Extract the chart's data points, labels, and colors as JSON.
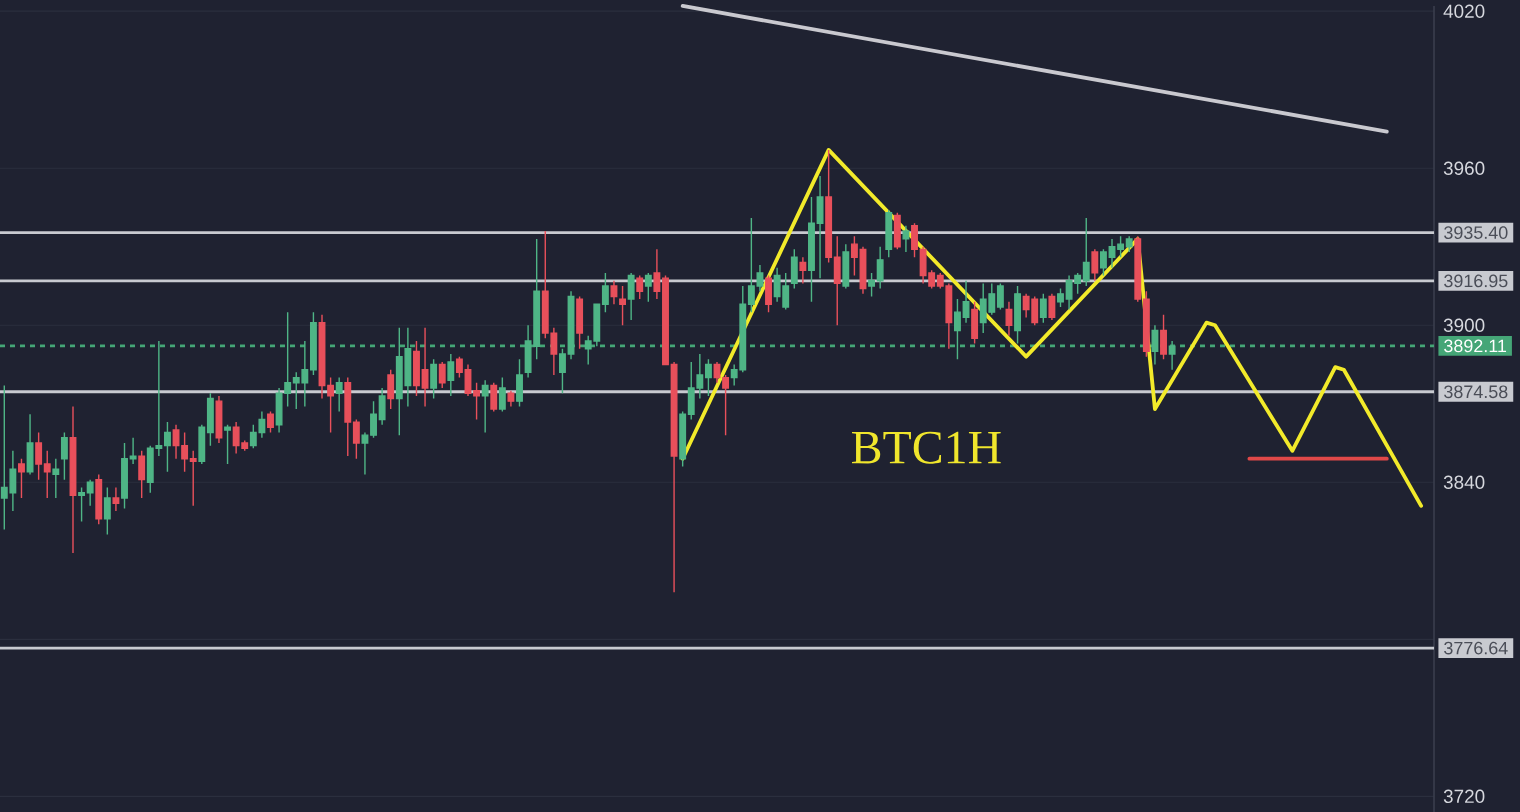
{
  "chart_data": {
    "type": "candlestick",
    "categories": [
      null,
      null,
      null,
      null,
      null,
      null,
      null,
      null,
      null,
      null,
      null,
      null,
      null,
      null,
      null,
      null,
      null,
      null,
      null,
      null,
      null,
      null,
      null,
      null,
      null,
      null,
      null,
      null,
      null,
      null,
      null,
      null,
      null,
      null,
      null,
      null,
      null,
      null,
      null,
      null,
      null,
      null,
      null,
      null,
      null,
      null,
      null,
      null,
      null,
      null,
      null,
      null,
      null,
      null,
      null,
      null,
      null,
      null,
      null,
      null,
      null,
      null,
      null,
      null,
      null,
      null,
      null,
      null,
      null,
      null,
      null,
      null,
      null,
      null,
      null,
      null,
      null,
      null,
      null,
      null,
      null,
      null,
      null,
      null,
      null,
      null,
      null,
      null,
      null,
      null,
      null,
      null,
      null,
      null,
      null,
      null,
      null,
      null,
      null,
      null,
      null,
      null,
      null,
      null,
      null,
      null,
      null,
      null,
      null,
      null,
      null,
      null,
      null,
      null,
      null,
      null,
      null,
      null,
      null,
      null,
      null,
      null,
      null,
      null,
      null,
      null,
      null,
      null,
      null,
      null,
      null,
      null,
      null,
      null,
      null,
      null,
      null,
      null,
      null,
      null,
      null,
      null,
      null,
      null,
      null,
      null,
      null,
      null,
      null,
      null,
      null,
      null,
      null,
      null,
      null,
      null,
      null,
      null,
      null,
      null,
      null,
      null,
      null,
      null,
      null,
      null,
      null
    ],
    "ohlc": [
      [
        3834,
        3877,
        3822,
        3838
      ],
      [
        3836,
        3852,
        3829,
        3845
      ],
      [
        3847,
        3849,
        3834,
        3844
      ],
      [
        3844,
        3866,
        3843,
        3855
      ],
      [
        3855,
        3859,
        3841,
        3847
      ],
      [
        3847,
        3852,
        3834,
        3844
      ],
      [
        3843,
        3849,
        3834,
        3845
      ],
      [
        3849,
        3859,
        3841,
        3857
      ],
      [
        3857,
        3869,
        3813,
        3835
      ],
      [
        3835,
        3838,
        3825,
        3836
      ],
      [
        3836,
        3841,
        3831,
        3840
      ],
      [
        3841,
        3843,
        3824,
        3826
      ],
      [
        3826,
        3838,
        3820,
        3834
      ],
      [
        3834,
        3838,
        3829,
        3832
      ],
      [
        3834,
        3855,
        3830,
        3849
      ],
      [
        3849,
        3857,
        3847,
        3850
      ],
      [
        3850,
        3852,
        3834,
        3841
      ],
      [
        3840,
        3854,
        3836,
        3853
      ],
      [
        3853,
        3894,
        3850,
        3854
      ],
      [
        3854,
        3863,
        3844,
        3859
      ],
      [
        3860,
        3862,
        3849,
        3854
      ],
      [
        3854,
        3859,
        3844,
        3849
      ],
      [
        3849,
        3852,
        3831,
        3848
      ],
      [
        3848,
        3862,
        3847,
        3861
      ],
      [
        3859,
        3874,
        3854,
        3872
      ],
      [
        3871,
        3873,
        3855,
        3857
      ],
      [
        3860,
        3862,
        3847,
        3861
      ],
      [
        3861,
        3863,
        3851,
        3854
      ],
      [
        3855,
        3856,
        3852,
        3853
      ],
      [
        3854,
        3862,
        3853,
        3859
      ],
      [
        3859,
        3867,
        3857,
        3864
      ],
      [
        3866,
        3867,
        3859,
        3861
      ],
      [
        3862,
        3876,
        3859,
        3874
      ],
      [
        3874,
        3905,
        3869,
        3878
      ],
      [
        3878,
        3882,
        3868,
        3880
      ],
      [
        3878,
        3894,
        3869,
        3883
      ],
      [
        3883,
        3905,
        3881,
        3901
      ],
      [
        3901,
        3904,
        3872,
        3877
      ],
      [
        3877,
        3880,
        3859,
        3873
      ],
      [
        3874,
        3880,
        3867,
        3878
      ],
      [
        3878,
        3880,
        3850,
        3863
      ],
      [
        3863,
        3864,
        3849,
        3855
      ],
      [
        3855,
        3859,
        3843,
        3858
      ],
      [
        3858,
        3871,
        3857,
        3866
      ],
      [
        3864,
        3876,
        3862,
        3873
      ],
      [
        3881,
        3883,
        3868,
        3872
      ],
      [
        3872,
        3899,
        3858,
        3888
      ],
      [
        3877,
        3899,
        3869,
        3891
      ],
      [
        3890,
        3894,
        3873,
        3877
      ],
      [
        3883,
        3899,
        3869,
        3876
      ],
      [
        3876,
        3887,
        3872,
        3885
      ],
      [
        3885,
        3886,
        3876,
        3878
      ],
      [
        3879,
        3889,
        3873,
        3886
      ],
      [
        3887,
        3888,
        3880,
        3882
      ],
      [
        3883,
        3885,
        3873,
        3874
      ],
      [
        3875,
        3878,
        3864,
        3873
      ],
      [
        3873,
        3879,
        3859,
        3877
      ],
      [
        3877,
        3878,
        3867,
        3868
      ],
      [
        3868,
        3880,
        3867,
        3876
      ],
      [
        3874,
        3875,
        3869,
        3871
      ],
      [
        3871,
        3887,
        3869,
        3881
      ],
      [
        3882,
        3900,
        3880,
        3894
      ],
      [
        3892,
        3933,
        3887,
        3913
      ],
      [
        3913,
        3936,
        3895,
        3897
      ],
      [
        3897,
        3899,
        3881,
        3889
      ],
      [
        3882,
        3891,
        3874,
        3889
      ],
      [
        3889,
        3913,
        3887,
        3911
      ],
      [
        3910,
        3911,
        3891,
        3897
      ],
      [
        3891,
        3896,
        3885,
        3894
      ],
      [
        3894,
        3908,
        3892,
        3908
      ],
      [
        3908,
        3920,
        3905,
        3915
      ],
      [
        3915,
        3917,
        3908,
        3911
      ],
      [
        3910,
        3915,
        3900,
        3908
      ],
      [
        3910,
        3920,
        3902,
        3919
      ],
      [
        3918,
        3919,
        3910,
        3913
      ],
      [
        3915,
        3920,
        3909,
        3919
      ],
      [
        3920,
        3929,
        3910,
        3913
      ],
      [
        3918,
        3919,
        3885,
        3885
      ],
      [
        3885,
        3886,
        3798,
        3850
      ],
      [
        3849,
        3867,
        3846,
        3866
      ],
      [
        3866,
        3886,
        3864,
        3876
      ],
      [
        3876,
        3889,
        3872,
        3881
      ],
      [
        3880,
        3887,
        3873,
        3885
      ],
      [
        3885,
        3886,
        3878,
        3880
      ],
      [
        3880,
        3881,
        3858,
        3876
      ],
      [
        3880,
        3885,
        3877,
        3883
      ],
      [
        3883,
        3915,
        3882,
        3908
      ],
      [
        3908,
        3941,
        3905,
        3915
      ],
      [
        3915,
        3923,
        3913,
        3920
      ],
      [
        3918,
        3919,
        3905,
        3908
      ],
      [
        3911,
        3922,
        3909,
        3919
      ],
      [
        3907,
        3920,
        3906,
        3915
      ],
      [
        3916,
        3929,
        3914,
        3926
      ],
      [
        3924,
        3926,
        3916,
        3921
      ],
      [
        3921,
        3949,
        3909,
        3939
      ],
      [
        3939,
        3957,
        3918,
        3949
      ],
      [
        3949,
        3967,
        3924,
        3926
      ],
      [
        3926,
        3934,
        3900,
        3916
      ],
      [
        3915,
        3931,
        3914,
        3928
      ],
      [
        3931,
        3934,
        3919,
        3926
      ],
      [
        3929,
        3930,
        3912,
        3914
      ],
      [
        3915,
        3920,
        3911,
        3917
      ],
      [
        3917,
        3930,
        3914,
        3925
      ],
      [
        3929,
        3944,
        3926,
        3943
      ],
      [
        3942,
        3943,
        3929,
        3930
      ],
      [
        3933,
        3938,
        3928,
        3936
      ],
      [
        3938,
        3939,
        3926,
        3929
      ],
      [
        3929,
        3930,
        3916,
        3919
      ],
      [
        3920,
        3921,
        3914,
        3915
      ],
      [
        3919,
        3920,
        3914,
        3915
      ],
      [
        3915,
        3916,
        3891,
        3901
      ],
      [
        3898,
        3910,
        3887,
        3905
      ],
      [
        3903,
        3917,
        3901,
        3909
      ],
      [
        3906,
        3909,
        3893,
        3895
      ],
      [
        3901,
        3916,
        3897,
        3910
      ],
      [
        3905,
        3916,
        3904,
        3912
      ],
      [
        3907,
        3916,
        3906,
        3915
      ],
      [
        3906,
        3909,
        3896,
        3900
      ],
      [
        3898,
        3915,
        3893,
        3912
      ],
      [
        3911,
        3912,
        3903,
        3906
      ],
      [
        3910,
        3911,
        3900,
        3901
      ],
      [
        3903,
        3912,
        3901,
        3910
      ],
      [
        3911,
        3912,
        3902,
        3903
      ],
      [
        3909,
        3914,
        3907,
        3912
      ],
      [
        3910,
        3919,
        3906,
        3917
      ],
      [
        3916,
        3920,
        3912,
        3919
      ],
      [
        3917,
        3941,
        3915,
        3924
      ],
      [
        3928,
        3929,
        3917,
        3920
      ],
      [
        3922,
        3929,
        3919,
        3928
      ],
      [
        3926,
        3933,
        3922,
        3930
      ],
      [
        3929,
        3934,
        3926,
        3931
      ],
      [
        3930,
        3934,
        3928,
        3933
      ],
      [
        3933,
        3934,
        3909,
        3910
      ],
      [
        3910,
        3913,
        3888,
        3890
      ],
      [
        3890,
        3900,
        3885,
        3898
      ],
      [
        3898,
        3904,
        3887,
        3889
      ],
      [
        3889,
        3894,
        3883,
        3892
      ],
      null,
      null,
      null,
      null,
      null,
      null,
      null,
      null,
      null,
      null,
      null,
      null,
      null,
      null,
      null,
      null,
      null,
      null,
      null,
      null,
      null,
      null,
      null,
      null,
      null,
      null,
      null,
      null,
      null,
      null
    ],
    "ylim": [
      3714,
      4022
    ],
    "yticks": [
      4020,
      3960,
      3900,
      3840,
      {
        "value": 3780,
        "label": null
      },
      3720
    ],
    "grid": "y",
    "tick_labels": "y",
    "ref_lines": [
      {
        "axis": "y",
        "value": 3935.4,
        "label": "3935.40",
        "color": "#c8cad0"
      },
      {
        "axis": "y",
        "value": 3916.95,
        "label": "3916.95",
        "color": "#c8cad0"
      },
      {
        "axis": "y",
        "value": 3892.11,
        "label": "3892.11",
        "color": "#45a677",
        "line_style": "dashed"
      },
      {
        "axis": "y",
        "value": 3874.58,
        "label": "3874.58",
        "color": "#c8cad0"
      },
      {
        "axis": "y",
        "value": 3776.64,
        "label": "3776.64",
        "color": "#c8cad0"
      }
    ],
    "series": [
      {
        "type": "line",
        "color": "#c9c9cf",
        "values": [
          null,
          null,
          null,
          null,
          null,
          null,
          null,
          null,
          null,
          null,
          null,
          null,
          null,
          null,
          null,
          null,
          null,
          null,
          null,
          null,
          null,
          null,
          null,
          null,
          null,
          null,
          null,
          null,
          null,
          null,
          null,
          null,
          null,
          null,
          null,
          null,
          null,
          null,
          null,
          null,
          null,
          null,
          null,
          null,
          null,
          null,
          null,
          null,
          null,
          null,
          null,
          null,
          null,
          null,
          null,
          null,
          null,
          null,
          null,
          null,
          null,
          null,
          null,
          null,
          null,
          null,
          null,
          null,
          null,
          null,
          null,
          null,
          null,
          null,
          null,
          null,
          null,
          null,
          null,
          4022,
          null,
          null,
          null,
          null,
          null,
          null,
          null,
          null,
          null,
          null,
          null,
          null,
          null,
          null,
          null,
          null,
          null,
          null,
          null,
          null,
          null,
          null,
          null,
          null,
          null,
          null,
          null,
          null,
          null,
          null,
          null,
          null,
          null,
          null,
          null,
          null,
          null,
          null,
          null,
          null,
          null,
          null,
          null,
          null,
          null,
          null,
          null,
          null,
          null,
          null,
          null,
          null,
          null,
          null,
          null,
          null,
          null,
          null,
          null,
          null,
          null,
          null,
          null,
          null,
          null,
          null,
          null,
          null,
          null,
          null,
          null,
          null,
          null,
          null,
          null,
          null,
          null,
          null,
          null,
          null,
          null,
          3974,
          null,
          null,
          null,
          null,
          null
        ]
      },
      {
        "type": "line",
        "color": "#e04848",
        "values": [
          null,
          null,
          null,
          null,
          null,
          null,
          null,
          null,
          null,
          null,
          null,
          null,
          null,
          null,
          null,
          null,
          null,
          null,
          null,
          null,
          null,
          null,
          null,
          null,
          null,
          null,
          null,
          null,
          null,
          null,
          null,
          null,
          null,
          null,
          null,
          null,
          null,
          null,
          null,
          null,
          null,
          null,
          null,
          null,
          null,
          null,
          null,
          null,
          null,
          null,
          null,
          null,
          null,
          null,
          null,
          null,
          null,
          null,
          null,
          null,
          null,
          null,
          null,
          null,
          null,
          null,
          null,
          null,
          null,
          null,
          null,
          null,
          null,
          null,
          null,
          null,
          null,
          null,
          null,
          null,
          null,
          null,
          null,
          null,
          null,
          null,
          null,
          null,
          null,
          null,
          null,
          null,
          null,
          null,
          null,
          null,
          null,
          null,
          null,
          null,
          null,
          null,
          null,
          null,
          null,
          null,
          null,
          null,
          null,
          null,
          null,
          null,
          null,
          null,
          null,
          null,
          null,
          null,
          null,
          null,
          null,
          null,
          null,
          null,
          null,
          null,
          null,
          null,
          null,
          null,
          null,
          null,
          null,
          null,
          null,
          null,
          null,
          null,
          null,
          null,
          null,
          null,
          null,
          null,
          null,
          3849,
          null,
          null,
          null,
          null,
          null,
          null,
          null,
          null,
          null,
          null,
          null,
          null,
          null,
          null,
          null,
          3849,
          null,
          null,
          null,
          null,
          null
        ]
      },
      {
        "type": "line",
        "color": "#f2ea2a",
        "values": [
          null,
          null,
          null,
          null,
          null,
          null,
          null,
          null,
          null,
          null,
          null,
          null,
          null,
          null,
          null,
          null,
          null,
          null,
          null,
          null,
          null,
          null,
          null,
          null,
          null,
          null,
          null,
          null,
          null,
          null,
          null,
          null,
          null,
          null,
          null,
          null,
          null,
          null,
          null,
          null,
          null,
          null,
          null,
          null,
          null,
          null,
          null,
          null,
          null,
          null,
          null,
          null,
          null,
          null,
          null,
          null,
          null,
          null,
          null,
          null,
          null,
          null,
          null,
          null,
          null,
          null,
          null,
          null,
          null,
          null,
          null,
          null,
          null,
          null,
          null,
          null,
          null,
          null,
          null,
          3849,
          null,
          null,
          null,
          null,
          null,
          null,
          null,
          null,
          null,
          null,
          null,
          null,
          null,
          null,
          null,
          null,
          3967,
          null,
          null,
          null,
          null,
          null,
          null,
          null,
          null,
          null,
          null,
          null,
          null,
          null,
          null,
          null,
          null,
          null,
          null,
          null,
          null,
          null,
          null,
          3888,
          null,
          null,
          null,
          null,
          null,
          null,
          null,
          null,
          null,
          null,
          null,
          null,
          3933,
          null,
          3868,
          null,
          null,
          null,
          null,
          null,
          3901,
          3900,
          null,
          null,
          null,
          null,
          null,
          null,
          null,
          null,
          3852,
          null,
          null,
          null,
          null,
          3884,
          3883,
          null,
          null,
          null,
          null,
          null,
          null,
          null,
          null,
          3831,
          null
        ]
      }
    ],
    "annotations": [
      "BTC1H"
    ]
  }
}
